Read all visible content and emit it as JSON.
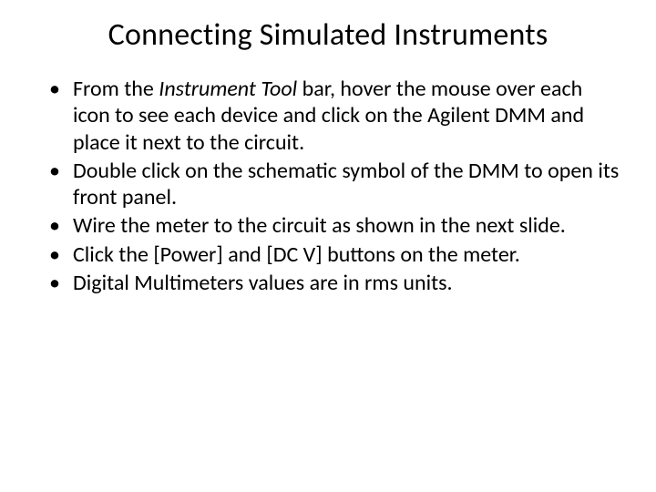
{
  "slide": {
    "title": "Connecting Simulated Instruments",
    "title_fontsize": 34,
    "body_fontsize": 24,
    "line_height": 1.22,
    "text_color": "#000000",
    "background_color": "#ffffff",
    "bullets": [
      {
        "segments": [
          {
            "text": "From the ",
            "italic": false
          },
          {
            "text": "Instrument Tool ",
            "italic": true
          },
          {
            "text": "bar, hover the mouse over each icon to see each device and click on the Agilent DMM and place it next to the circuit.",
            "italic": false
          }
        ]
      },
      {
        "segments": [
          {
            "text": "Double click on the schematic symbol of the DMM to open its front panel.",
            "italic": false
          }
        ]
      },
      {
        "segments": [
          {
            "text": "Wire the meter to the circuit as shown in the next slide.",
            "italic": false
          }
        ]
      },
      {
        "segments": [
          {
            "text": "Click the [Power] and [DC V] buttons on the meter.",
            "italic": false
          }
        ]
      },
      {
        "segments": [
          {
            "text": "Digital Multimeters values are in rms units.",
            "italic": false
          }
        ]
      }
    ]
  }
}
